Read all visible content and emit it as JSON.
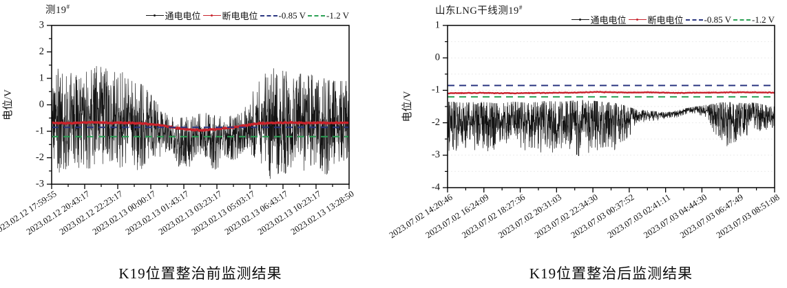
{
  "page": {
    "background": "#ffffff"
  },
  "chart_data": [
    {
      "type": "line",
      "title": "测19",
      "title_superscript": "#",
      "caption": "K19位置整治前监测结果",
      "ylabel": "电位/V",
      "ylim": [
        -3,
        3
      ],
      "yticks": [
        3,
        2,
        1,
        0,
        -1,
        -2,
        -3
      ],
      "y_minor_step": 0.5,
      "x_tick_labels": [
        "2023.02.12 17:59:55",
        "2023.02.12 20:43:17",
        "2023.02.12 22:23:17",
        "2023.02.13 00:00:17",
        "2023.02.13 01:43:17",
        "2023.02.13 03:23:17",
        "2023.02.13 05:03:17",
        "2023.02.13 06:43:17",
        "2023.02.13 10:23:17",
        "2023.02.13 13:28:50"
      ],
      "grid": false,
      "legend_position": "top-right",
      "legend": [
        {
          "label": "通电电位",
          "style": "line-dot",
          "color": "#141414"
        },
        {
          "label": "断电电位",
          "style": "line-dot",
          "color": "#c8232c"
        },
        {
          "label": "-0.85 V",
          "style": "dashed",
          "color": "#293580"
        },
        {
          "label": "-1.2 V",
          "style": "dashed",
          "color": "#2aa053"
        }
      ],
      "ref_lines": [
        {
          "label": "-0.85 V",
          "value": -0.85,
          "color": "#293580"
        },
        {
          "label": "-1.2 V",
          "value": -1.2,
          "color": "#2aa053"
        }
      ],
      "series": [
        {
          "name": "通电电位",
          "type": "noisy-band",
          "color": "#141414",
          "density_bias": 0.5,
          "envelope_x_frac_min_max": [
            [
              0.0,
              -2.3,
              1.2
            ],
            [
              0.02,
              -2.6,
              1.45
            ],
            [
              0.05,
              -2.5,
              1.3
            ],
            [
              0.08,
              -2.3,
              1.1
            ],
            [
              0.1,
              -2.45,
              1.2
            ],
            [
              0.13,
              -2.4,
              1.5
            ],
            [
              0.16,
              -2.3,
              1.45
            ],
            [
              0.19,
              -2.5,
              1.35
            ],
            [
              0.22,
              -2.4,
              1.2
            ],
            [
              0.25,
              -2.3,
              1.25
            ],
            [
              0.28,
              -2.45,
              1.0
            ],
            [
              0.31,
              -2.5,
              0.7
            ],
            [
              0.34,
              -2.2,
              0.3
            ],
            [
              0.37,
              -1.9,
              -0.2
            ],
            [
              0.4,
              -1.7,
              -0.45
            ],
            [
              0.43,
              -2.4,
              -0.5
            ],
            [
              0.46,
              -2.6,
              -0.45
            ],
            [
              0.49,
              -1.8,
              -0.35
            ],
            [
              0.52,
              -2.0,
              -0.3
            ],
            [
              0.55,
              -2.6,
              -0.4
            ],
            [
              0.58,
              -1.9,
              -0.45
            ],
            [
              0.61,
              -2.2,
              -0.4
            ],
            [
              0.64,
              -1.8,
              -0.3
            ],
            [
              0.66,
              -1.7,
              0.1
            ],
            [
              0.68,
              -2.0,
              0.6
            ],
            [
              0.71,
              -2.3,
              1.1
            ],
            [
              0.74,
              -2.9,
              1.4
            ],
            [
              0.77,
              -2.5,
              1.3
            ],
            [
              0.8,
              -2.7,
              1.35
            ],
            [
              0.83,
              -2.3,
              1.15
            ],
            [
              0.86,
              -2.6,
              1.25
            ],
            [
              0.89,
              -2.4,
              1.0
            ],
            [
              0.92,
              -2.7,
              1.05
            ],
            [
              0.95,
              -2.3,
              0.9
            ],
            [
              1.0,
              -2.0,
              0.9
            ]
          ]
        },
        {
          "name": "断电电位",
          "type": "line",
          "color": "#c8232c",
          "points_x_frac_value": [
            [
              0.0,
              -0.68
            ],
            [
              0.05,
              -0.7
            ],
            [
              0.1,
              -0.67
            ],
            [
              0.15,
              -0.66
            ],
            [
              0.2,
              -0.68
            ],
            [
              0.25,
              -0.68
            ],
            [
              0.3,
              -0.7
            ],
            [
              0.34,
              -0.73
            ],
            [
              0.38,
              -0.8
            ],
            [
              0.42,
              -0.88
            ],
            [
              0.46,
              -0.93
            ],
            [
              0.5,
              -0.96
            ],
            [
              0.54,
              -0.93
            ],
            [
              0.57,
              -0.9
            ],
            [
              0.6,
              -0.87
            ],
            [
              0.63,
              -0.82
            ],
            [
              0.66,
              -0.76
            ],
            [
              0.7,
              -0.7
            ],
            [
              0.75,
              -0.68
            ],
            [
              0.8,
              -0.67
            ],
            [
              0.85,
              -0.69
            ],
            [
              0.9,
              -0.68
            ],
            [
              0.95,
              -0.69
            ],
            [
              1.0,
              -0.68
            ]
          ]
        }
      ]
    },
    {
      "type": "line",
      "title": "山东LNG干线测19",
      "title_superscript": "#",
      "caption": "K19位置整治后监测结果",
      "ylabel": "电位/V",
      "ylim": [
        -4,
        1
      ],
      "yticks": [
        1,
        0,
        -1,
        -2,
        -3,
        -4
      ],
      "y_minor_step": 0.5,
      "x_tick_labels": [
        "2023.07.02 14:20:46",
        "2023.07.02 16:24:09",
        "2023.07.02 18:27:36",
        "2023.07.02 20:31:03",
        "2023.07.02 22:34:30",
        "2023.07.03 00:37:52",
        "2023.07.03 02:41:11",
        "2023.07.03 04:44:30",
        "2023.07.03 06:47:49",
        "2023.07.03 08:51:08"
      ],
      "grid": true,
      "grid_color": "#ebebeb",
      "legend_position": "top-right",
      "legend": [
        {
          "label": "通电电位",
          "style": "line-dot",
          "color": "#141414"
        },
        {
          "label": "断电电位",
          "style": "line-dot",
          "color": "#c8232c"
        },
        {
          "label": "-0.85 V",
          "style": "dashed",
          "color": "#293580"
        },
        {
          "label": "-1.2 V",
          "style": "dashed",
          "color": "#2aa053"
        }
      ],
      "ref_lines": [
        {
          "label": "-0.85 V",
          "value": -0.85,
          "color": "#293580"
        },
        {
          "label": "-1.2 V",
          "value": -1.2,
          "color": "#2aa053"
        }
      ],
      "series": [
        {
          "name": "通电电位",
          "type": "noisy-band",
          "color": "#141414",
          "density_bias": 0.62,
          "envelope_x_frac_min_max": [
            [
              0.0,
              -2.9,
              -1.35
            ],
            [
              0.05,
              -2.85,
              -1.38
            ],
            [
              0.1,
              -3.0,
              -1.35
            ],
            [
              0.15,
              -2.8,
              -1.4
            ],
            [
              0.2,
              -2.75,
              -1.35
            ],
            [
              0.25,
              -2.9,
              -1.38
            ],
            [
              0.3,
              -3.0,
              -1.33
            ],
            [
              0.35,
              -2.85,
              -1.35
            ],
            [
              0.4,
              -3.05,
              -1.3
            ],
            [
              0.44,
              -2.95,
              -1.32
            ],
            [
              0.48,
              -2.9,
              -1.35
            ],
            [
              0.52,
              -2.85,
              -1.4
            ],
            [
              0.55,
              -2.5,
              -1.5
            ],
            [
              0.58,
              -2.1,
              -1.6
            ],
            [
              0.61,
              -1.95,
              -1.62
            ],
            [
              0.64,
              -1.95,
              -1.65
            ],
            [
              0.67,
              -1.9,
              -1.68
            ],
            [
              0.7,
              -1.85,
              -1.62
            ],
            [
              0.73,
              -1.75,
              -1.55
            ],
            [
              0.76,
              -1.72,
              -1.5
            ],
            [
              0.79,
              -1.85,
              -1.45
            ],
            [
              0.82,
              -2.4,
              -1.4
            ],
            [
              0.85,
              -2.75,
              -1.35
            ],
            [
              0.88,
              -2.6,
              -1.38
            ],
            [
              0.91,
              -2.45,
              -1.4
            ],
            [
              0.94,
              -2.3,
              -1.38
            ],
            [
              0.97,
              -2.25,
              -1.45
            ],
            [
              1.0,
              -2.15,
              -1.5
            ]
          ]
        },
        {
          "name": "断电电位",
          "type": "line",
          "color": "#c8232c",
          "points_x_frac_value": [
            [
              0.0,
              -1.09
            ],
            [
              0.1,
              -1.08
            ],
            [
              0.2,
              -1.09
            ],
            [
              0.3,
              -1.08
            ],
            [
              0.4,
              -1.07
            ],
            [
              0.45,
              -1.05
            ],
            [
              0.5,
              -1.06
            ],
            [
              0.55,
              -1.07
            ],
            [
              0.6,
              -1.06
            ],
            [
              0.7,
              -1.08
            ],
            [
              0.8,
              -1.07
            ],
            [
              0.9,
              -1.06
            ],
            [
              1.0,
              -1.07
            ]
          ]
        }
      ]
    }
  ]
}
